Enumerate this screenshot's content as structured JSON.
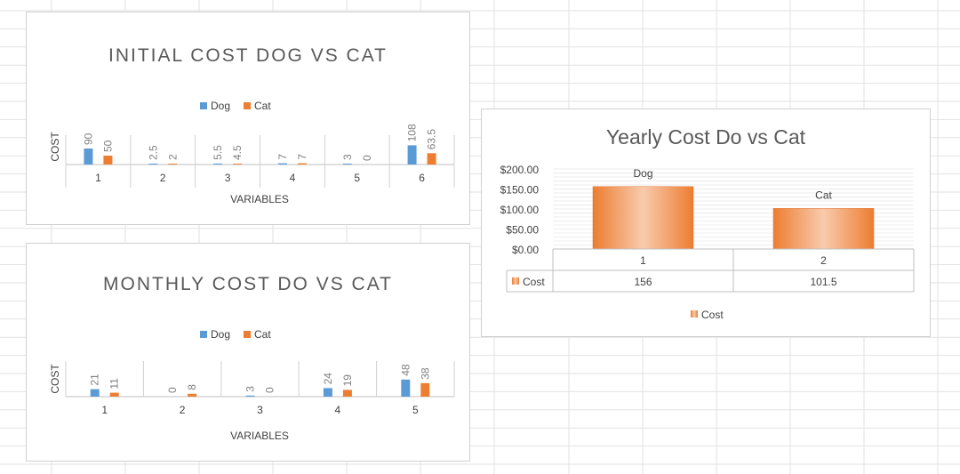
{
  "colors": {
    "dog": "#5b9bd5",
    "cat": "#ed7d31",
    "cost_light": "#f8cbad",
    "cost_dark": "#ed7d31"
  },
  "chart_data": [
    {
      "type": "bar",
      "title": "INITIAL COST DOG VS CAT",
      "xlabel": "VARIABLES",
      "ylabel": "COST",
      "categories": [
        "1",
        "2",
        "3",
        "4",
        "5",
        "6"
      ],
      "series": [
        {
          "name": "Dog",
          "values": [
            90,
            2.5,
            5.5,
            7,
            3,
            108
          ]
        },
        {
          "name": "Cat",
          "values": [
            50,
            2,
            4.5,
            7,
            0,
            63.5
          ]
        }
      ],
      "data_labels": {
        "Dog": [
          "90",
          "2.5",
          "5.5",
          "7",
          "3",
          "108"
        ],
        "Cat": [
          "50",
          "2",
          "4.5",
          "7",
          "0",
          "63.5"
        ]
      },
      "legend": "top",
      "ylim": [
        0,
        130
      ]
    },
    {
      "type": "bar",
      "title": "MONTHLY COST DO VS CAT",
      "xlabel": "VARIABLES",
      "ylabel": "COST",
      "categories": [
        "1",
        "2",
        "3",
        "4",
        "5"
      ],
      "series": [
        {
          "name": "Dog",
          "values": [
            21,
            0,
            3,
            24,
            48
          ]
        },
        {
          "name": "Cat",
          "values": [
            11,
            8,
            0,
            19,
            38
          ]
        }
      ],
      "data_labels": {
        "Dog": [
          "21",
          "0",
          "3",
          "24",
          "48"
        ],
        "Cat": [
          "11",
          "8",
          "0",
          "19",
          "38"
        ]
      },
      "legend": "top",
      "ylim": [
        0,
        90
      ]
    },
    {
      "type": "bar",
      "title": "Yearly Cost Do vs Cat",
      "categories": [
        "1",
        "2"
      ],
      "bar_labels": [
        "Dog",
        "Cat"
      ],
      "series": [
        {
          "name": "Cost",
          "values": [
            156,
            101.5
          ]
        }
      ],
      "table_values": [
        "156",
        "101.5"
      ],
      "yticks": [
        "$0.00",
        "$50.00",
        "$100.00",
        "$150.00",
        "$200.00"
      ],
      "ylim": [
        0,
        200
      ],
      "legend": "bottom",
      "data_table": true
    }
  ]
}
